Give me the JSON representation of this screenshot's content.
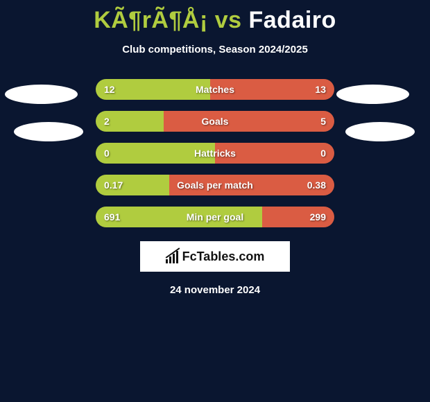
{
  "title": {
    "left_text": "KÃ¶rÃ¶Å¡",
    "vs_text": " vs ",
    "right_text": "Fadairo",
    "left_color": "#b0cc3f",
    "right_color": "#fefeff",
    "vs_color": "#b0cc3f"
  },
  "subtitle": "Club competitions, Season 2024/2025",
  "colors": {
    "background": "#0a1630",
    "bar_left": "#b0cc3f",
    "bar_right": "#da5c43",
    "text": "#ffffff"
  },
  "bar": {
    "track_width": 344,
    "track_height": 30,
    "radius": 15
  },
  "stats": [
    {
      "label": "Matches",
      "left_val": "12",
      "right_val": "13",
      "left_num": 12,
      "right_num": 13
    },
    {
      "label": "Goals",
      "left_val": "2",
      "right_val": "5",
      "left_num": 2,
      "right_num": 5
    },
    {
      "label": "Hattricks",
      "left_val": "0",
      "right_val": "0",
      "left_num": 0,
      "right_num": 0
    },
    {
      "label": "Goals per match",
      "left_val": "0.17",
      "right_val": "0.38",
      "left_num": 0.17,
      "right_num": 0.38
    },
    {
      "label": "Min per goal",
      "left_val": "691",
      "right_val": "299",
      "left_num": 691,
      "right_num": 299
    }
  ],
  "logo_text": "FcTables.com",
  "date": "24 november 2024"
}
